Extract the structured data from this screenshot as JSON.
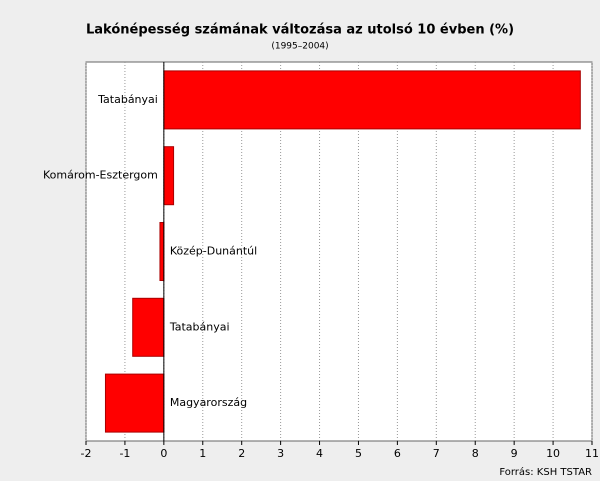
{
  "chart_data": {
    "type": "bar",
    "orientation": "horizontal",
    "title": "Lakónépesség számának változása az utolsó 10 évben (%)",
    "subtitle": "(1995–2004)",
    "source": "Forrás: KSH TSTAR",
    "categories": [
      "Tatabányai",
      "Komárom-Esztergom",
      "Közép-Dunántúl",
      "Tatabányai",
      "Magyarország"
    ],
    "values": [
      10.7,
      0.25,
      -0.1,
      -0.8,
      -1.5
    ],
    "color": "#ff0000",
    "xlim": [
      -2,
      11
    ],
    "xticks": [
      -2,
      -1,
      0,
      1,
      2,
      3,
      4,
      5,
      6,
      7,
      8,
      9,
      10,
      11
    ],
    "grid": true
  }
}
